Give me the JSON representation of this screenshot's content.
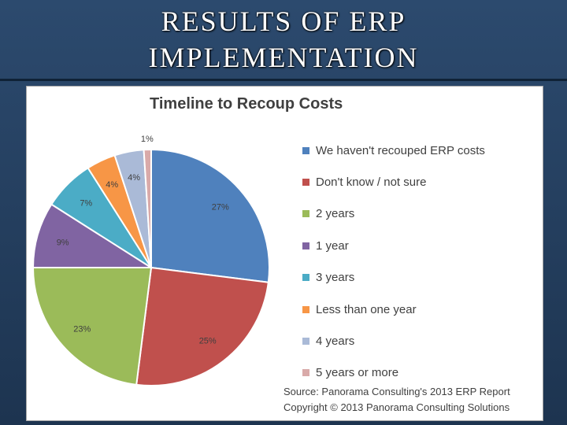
{
  "slide": {
    "title_line1": "RESULTS OF ERP",
    "title_line2": "IMPLEMENTATION"
  },
  "chart_data": {
    "type": "pie",
    "title": "Timeline to Recoup Costs",
    "slices": [
      {
        "label": "We haven't recouped ERP costs",
        "value": 27,
        "display": "27%",
        "color": "#4f81bd"
      },
      {
        "label": "Don't know / not sure",
        "value": 25,
        "display": "25%",
        "color": "#c0504d"
      },
      {
        "label": "2 years",
        "value": 23,
        "display": "23%",
        "color": "#9bbb59"
      },
      {
        "label": "1 year",
        "value": 9,
        "display": "9%",
        "color": "#8064a2"
      },
      {
        "label": "3 years",
        "value": 7,
        "display": "7%",
        "color": "#4bacc6"
      },
      {
        "label": "Less than one year",
        "value": 4,
        "display": "4%",
        "color": "#f79646"
      },
      {
        "label": "4 years",
        "value": 4,
        "display": "4%",
        "color": "#aabad7"
      },
      {
        "label": "5 years or more",
        "value": 1,
        "display": "1%",
        "color": "#d9aaa9"
      }
    ],
    "legend_position": "right",
    "source_line1": "Source: Panorama Consulting's 2013 ERP Report",
    "source_line2": "Copyright © 2013 Panorama Consulting Solutions"
  }
}
